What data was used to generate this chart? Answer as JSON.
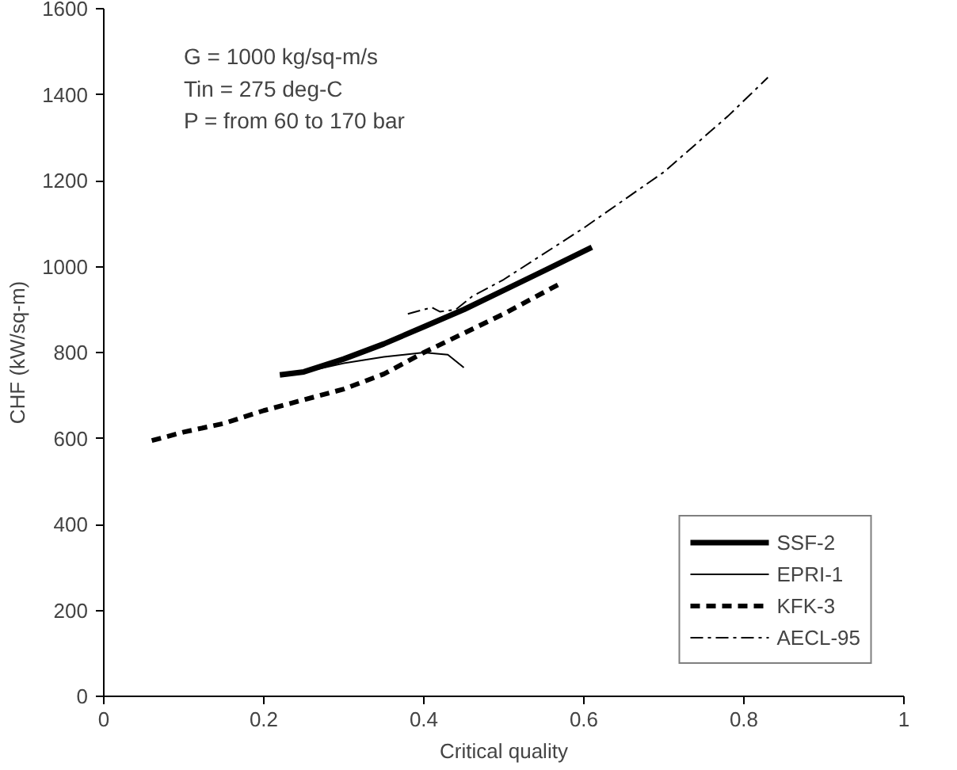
{
  "chart_data": {
    "type": "line",
    "xlabel": "Critical quality",
    "ylabel": "CHF (kW/sq-m)",
    "xlim": [
      0,
      1
    ],
    "ylim": [
      0,
      1600
    ],
    "xticks": [
      0,
      0.2,
      0.4,
      0.6,
      0.8,
      1
    ],
    "yticks": [
      0,
      200,
      400,
      600,
      800,
      1000,
      1200,
      1400,
      1600
    ],
    "grid": false,
    "legend": "bottom right",
    "marker": "none",
    "annotations": [
      "G = 1000 kg/sq-m/s",
      "Tin = 275 deg-C",
      "P = from 60 to 170 bar"
    ],
    "series": [
      {
        "name": "SSF-2",
        "color": "#000000",
        "line_style": "solid",
        "x": [
          0.22,
          0.25,
          0.3,
          0.35,
          0.4,
          0.45,
          0.5,
          0.55,
          0.61
        ],
        "values": [
          748,
          755,
          785,
          820,
          860,
          900,
          945,
          990,
          1045
        ]
      },
      {
        "name": "EPRI-1",
        "color": "#000000",
        "line_style": "solid",
        "x": [
          0.24,
          0.3,
          0.35,
          0.4,
          0.43,
          0.45
        ],
        "values": [
          750,
          775,
          790,
          800,
          795,
          765
        ]
      },
      {
        "name": "KFK-3",
        "color": "#000000",
        "line_style": "dashed",
        "x": [
          0.06,
          0.1,
          0.15,
          0.2,
          0.25,
          0.3,
          0.35,
          0.4,
          0.45,
          0.5,
          0.57
        ],
        "values": [
          595,
          615,
          635,
          665,
          690,
          715,
          750,
          800,
          845,
          890,
          960
        ]
      },
      {
        "name": "AECL-95",
        "color": "#000000",
        "line_style": "dashdot",
        "x": [
          0.38,
          0.4,
          0.41,
          0.42,
          0.44,
          0.46,
          0.5,
          0.6,
          0.7,
          0.78,
          0.83
        ],
        "values": [
          890,
          900,
          905,
          895,
          900,
          930,
          970,
          1090,
          1220,
          1350,
          1440
        ]
      }
    ]
  }
}
